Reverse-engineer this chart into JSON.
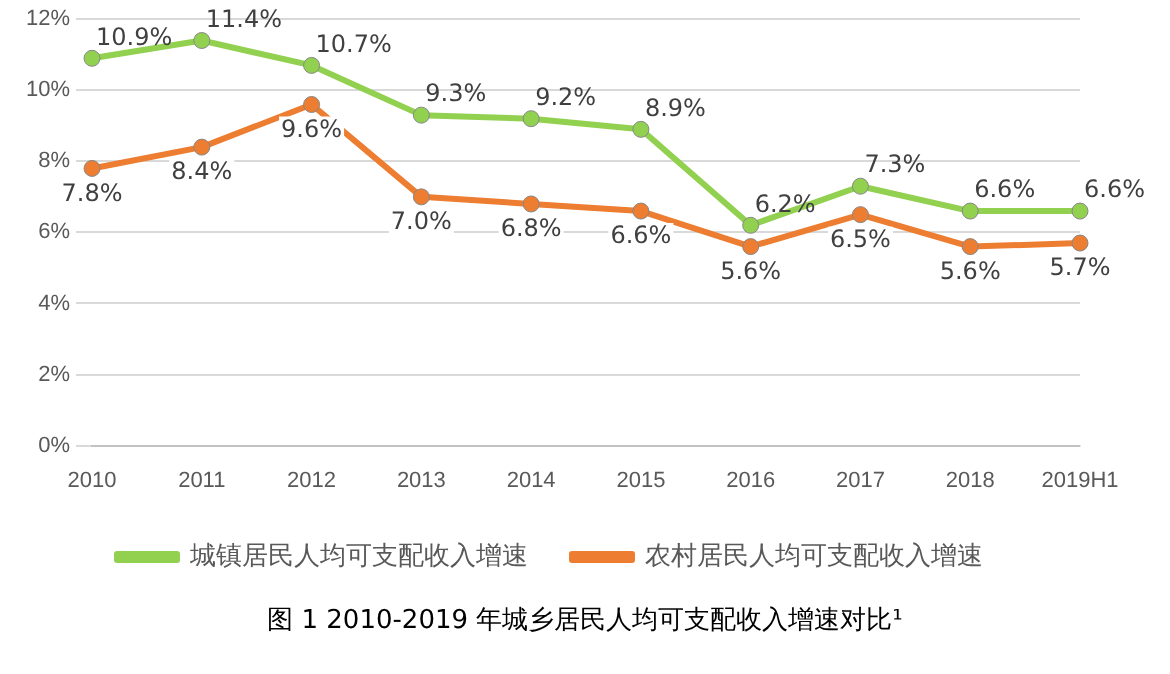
{
  "chart_data": {
    "type": "line",
    "title": "图 1 2010-2019 年城乡居民人均可支配收入增速对比¹",
    "categories": [
      "2010",
      "2011",
      "2012",
      "2013",
      "2014",
      "2015",
      "2016",
      "2017",
      "2018",
      "2019H1"
    ],
    "series": [
      {
        "name": "城镇居民人均可支配收入增速",
        "color": "#92d050",
        "values": [
          10.9,
          11.4,
          10.7,
          9.3,
          9.2,
          8.9,
          6.2,
          7.3,
          6.6,
          6.6
        ],
        "value_labels": [
          "10.9%",
          "11.4%",
          "10.7%",
          "9.3%",
          "9.2%",
          "8.9%",
          "6.2%",
          "7.3%",
          "6.6%",
          "6.6%"
        ]
      },
      {
        "name": "农村居民人均可支配收入增速",
        "color": "#ed7d31",
        "values": [
          7.8,
          8.4,
          9.6,
          7.0,
          6.8,
          6.6,
          5.6,
          6.5,
          5.6,
          5.7
        ],
        "value_labels": [
          "7.8%",
          "8.4%",
          "9.6%",
          "7.0%",
          "6.8%",
          "6.6%",
          "5.6%",
          "6.5%",
          "5.6%",
          "5.7%"
        ]
      }
    ],
    "ylim": [
      0,
      12
    ],
    "yticks": [
      {
        "value": 0,
        "label": "0%"
      },
      {
        "value": 2,
        "label": "2%"
      },
      {
        "value": 4,
        "label": "4%"
      },
      {
        "value": 6,
        "label": "6%"
      },
      {
        "value": 8,
        "label": "8%"
      },
      {
        "value": 10,
        "label": "10%"
      },
      {
        "value": 12,
        "label": "12%"
      }
    ],
    "grid": "y",
    "legend": "bottom",
    "marker": "circle",
    "line_style": "solid"
  }
}
